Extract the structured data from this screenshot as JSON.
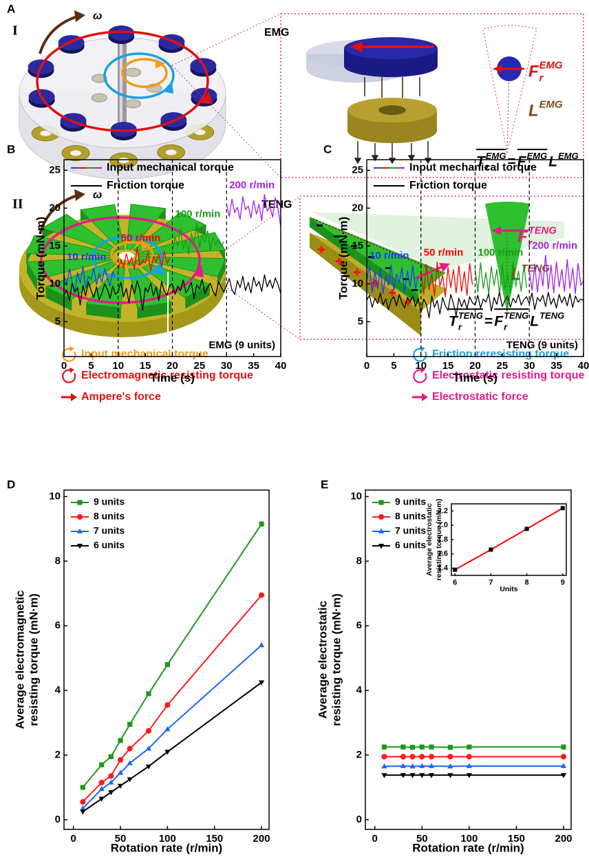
{
  "figure": {
    "panel": "A",
    "emg": {
      "row": "I",
      "label": "EMG",
      "omega": "ω",
      "force": {
        "symbol": "F",
        "sub": "r",
        "sup": "EMG"
      },
      "arm": {
        "symbol": "L",
        "sup": "EMG"
      },
      "torque": {
        "symbol": "T",
        "sub": "r",
        "sup": "EMG"
      },
      "equals": "="
    },
    "teng": {
      "row": "II",
      "label": "TENG",
      "omega": "ω",
      "force": {
        "symbol": "F",
        "sub": "r",
        "sup": "TENG"
      },
      "arm": {
        "symbol": "L",
        "sup": "TENG"
      },
      "torque": {
        "symbol": "T",
        "sub": "r",
        "sup": "TENG"
      },
      "equals": "="
    },
    "legend": [
      {
        "text": "Input mechanical torque",
        "color": "#f39a1a",
        "icon": "circle"
      },
      {
        "text": "Friction reresisting torque",
        "color": "#1aa0e0",
        "icon": "circle"
      },
      {
        "text": "Electromagnetic resisting torque",
        "color": "#e01010",
        "icon": "circle"
      },
      {
        "text": "Electrostatic resisting torque",
        "color": "#e6198a",
        "icon": "circle"
      },
      {
        "text": "Ampere's force",
        "color": "#e01010",
        "icon": "arrow"
      },
      {
        "text": "Electrostatic force",
        "color": "#e6198a",
        "icon": "arrow"
      }
    ]
  },
  "chart_data": [
    {
      "type": "line",
      "panel": "B",
      "xlabel": "Time (s)",
      "ylabel": "Torque (mN·m)",
      "note": "EMG (9 units)",
      "xlim": [
        0,
        40
      ],
      "xticks": [
        0,
        5,
        10,
        15,
        20,
        25,
        30,
        35,
        40
      ],
      "ylim": [
        0.4,
        26.4
      ],
      "yticks": [
        5,
        10,
        15,
        20,
        25
      ],
      "vlines": [
        10,
        20,
        30
      ],
      "legend": "upper left",
      "x": [
        0,
        0.5,
        1,
        1.5,
        2,
        2.5,
        3,
        3.5,
        4,
        4.5,
        5,
        5.5,
        6,
        6.5,
        7,
        7.5,
        8,
        8.5,
        9,
        9.5,
        10,
        10.5,
        11,
        11.5,
        12,
        12.5,
        13,
        13.5,
        14,
        14.5,
        15,
        15.5,
        16,
        16.5,
        17,
        17.5,
        18,
        18.5,
        19,
        19.5,
        20,
        20.5,
        21,
        21.5,
        22,
        22.5,
        23,
        23.5,
        24,
        24.5,
        25,
        25.5,
        26,
        26.5,
        27,
        27.5,
        28,
        28.5,
        29,
        29.5,
        30,
        30.5,
        31,
        31.5,
        32,
        32.5,
        33,
        33.5,
        34,
        34.5,
        35,
        35.5,
        36,
        36.5,
        37,
        37.5,
        38,
        38.5,
        39,
        39.5,
        40
      ],
      "series": [
        {
          "name": "Input mechanical torque",
          "segments": [
            {
              "label": "10 r/min",
              "color": "#1a3cff"
            },
            {
              "label": "50 r/min",
              "color": "#ff0000"
            },
            {
              "label": "100 r/min",
              "color": "#1a9a1a"
            },
            {
              "label": "200 r/min",
              "color": "#a020f0"
            }
          ],
          "values": [
            11.2,
            9.8,
            12.0,
            10.3,
            8.9,
            11.5,
            10.1,
            12.3,
            9.5,
            11.0,
            10.6,
            12.1,
            9.9,
            11.4,
            10.2,
            12.0,
            10.8,
            9.7,
            11.6,
            10.9,
            11.8,
            13.2,
            12.1,
            14.0,
            12.6,
            13.5,
            11.9,
            14.8,
            12.4,
            13.1,
            12.8,
            14.2,
            11.7,
            13.6,
            12.9,
            13.9,
            12.3,
            14.3,
            12.7,
            13.4,
            14.2,
            16.1,
            15.0,
            17.3,
            14.6,
            15.8,
            13.9,
            16.7,
            15.3,
            18.0,
            14.8,
            16.4,
            15.5,
            17.0,
            14.4,
            16.2,
            15.1,
            15.9,
            14.9,
            15.6,
            20.6,
            18.9,
            21.2,
            19.4,
            20.1,
            18.5,
            21.5,
            19.8,
            20.3,
            18.7,
            21.0,
            19.2,
            20.5,
            18.3,
            21.8,
            19.6,
            20.2,
            18.8,
            21.4,
            19.9,
            17.5
          ]
        },
        {
          "name": "Friction torque",
          "color": "#000000",
          "values": [
            8.5,
            9.2,
            7.8,
            10.1,
            8.9,
            9.5,
            7.2,
            9.8,
            8.4,
            10.3,
            9.1,
            8.2,
            9.6,
            7.9,
            8.8,
            10.0,
            9.3,
            8.1,
            9.7,
            8.6,
            9.0,
            10.2,
            8.3,
            9.4,
            7.5,
            9.9,
            8.7,
            10.4,
            9.2,
            6.5,
            9.5,
            8.9,
            10.1,
            8.4,
            9.6,
            7.8,
            10.3,
            9.0,
            8.5,
            9.8,
            10.0,
            8.6,
            9.7,
            9.1,
            10.5,
            8.8,
            9.4,
            10.2,
            8.0,
            9.9,
            9.3,
            10.6,
            8.7,
            9.5,
            10.1,
            9.0,
            8.4,
            10.3,
            9.6,
            8.9,
            9.8,
            10.7,
            9.2,
            8.6,
            10.4,
            9.5,
            11.0,
            9.1,
            10.2,
            8.8,
            10.9,
            9.7,
            10.3,
            9.0,
            11.2,
            9.6,
            10.5,
            9.4,
            10.8,
            9.9,
            8.7
          ]
        }
      ]
    },
    {
      "type": "line",
      "panel": "C",
      "xlabel": "Time (s)",
      "ylabel": "Torque (mN·m)",
      "note": "TENG (9 units)",
      "xlim": [
        0,
        40
      ],
      "xticks": [
        0,
        5,
        10,
        15,
        20,
        25,
        30,
        35,
        40
      ],
      "ylim": [
        0.4,
        26.4
      ],
      "yticks": [
        5,
        10,
        15,
        20,
        25
      ],
      "vlines": [
        10,
        20,
        30
      ],
      "legend": "upper left",
      "x": [
        0,
        0.5,
        1,
        1.5,
        2,
        2.5,
        3,
        3.5,
        4,
        4.5,
        5,
        5.5,
        6,
        6.5,
        7,
        7.5,
        8,
        8.5,
        9,
        9.5,
        10,
        10.5,
        11,
        11.5,
        12,
        12.5,
        13,
        13.5,
        14,
        14.5,
        15,
        15.5,
        16,
        16.5,
        17,
        17.5,
        18,
        18.5,
        19,
        19.5,
        20,
        20.5,
        21,
        21.5,
        22,
        22.5,
        23,
        23.5,
        24,
        24.5,
        25,
        25.5,
        26,
        26.5,
        27,
        27.5,
        28,
        28.5,
        29,
        29.5,
        30,
        30.5,
        31,
        31.5,
        32,
        32.5,
        33,
        33.5,
        34,
        34.5,
        35,
        35.5,
        36,
        36.5,
        37,
        37.5,
        38,
        38.5,
        39,
        39.5,
        40
      ],
      "series": [
        {
          "name": "Input mechanical torque",
          "segments": [
            {
              "label": "10 r/min",
              "color": "#1a3cff"
            },
            {
              "label": "50 r/min",
              "color": "#ff0000"
            },
            {
              "label": "100 r/min",
              "color": "#1a9a1a"
            },
            {
              "label": "200 r/min",
              "color": "#a020f0"
            }
          ],
          "values": [
            10.5,
            12.3,
            8.9,
            11.6,
            9.4,
            12.0,
            8.7,
            11.1,
            9.8,
            12.5,
            9.1,
            11.3,
            10.2,
            12.1,
            8.8,
            11.7,
            9.6,
            12.4,
            9.3,
            11.0,
            11.8,
            8.6,
            12.6,
            9.2,
            11.4,
            8.4,
            12.9,
            9.7,
            11.1,
            8.3,
            12.2,
            9.5,
            11.9,
            8.8,
            12.4,
            9.0,
            11.6,
            8.5,
            12.7,
            9.9,
            12.0,
            8.9,
            12.8,
            9.4,
            11.5,
            8.7,
            12.3,
            9.8,
            11.9,
            8.6,
            12.6,
            9.3,
            11.2,
            8.8,
            12.9,
            9.6,
            11.7,
            9.0,
            12.4,
            9.5,
            11.8,
            9.1,
            12.6,
            8.9,
            12.2,
            9.7,
            13.8,
            9.3,
            12.5,
            8.8,
            12.9,
            9.6,
            11.9,
            9.0,
            13.2,
            9.4,
            12.1,
            8.7,
            12.7,
            9.8,
            10.4
          ]
        },
        {
          "name": "Friction torque",
          "color": "#000000",
          "values": [
            7.8,
            8.5,
            6.9,
            8.1,
            7.4,
            8.8,
            7.2,
            8.0,
            6.6,
            7.9,
            8.3,
            7.1,
            8.6,
            7.5,
            6.8,
            8.2,
            7.7,
            8.4,
            7.0,
            8.1,
            6.2,
            8.0,
            7.3,
            5.5,
            8.4,
            6.9,
            7.8,
            6.0,
            8.2,
            7.1,
            6.5,
            8.6,
            7.4,
            5.8,
            8.1,
            7.0,
            7.9,
            6.7,
            8.3,
            7.5,
            7.2,
            8.5,
            6.8,
            8.0,
            7.6,
            8.7,
            6.4,
            8.2,
            7.3,
            8.9,
            7.0,
            7.8,
            8.4,
            6.9,
            8.1,
            7.5,
            8.6,
            7.2,
            7.9,
            8.3,
            7.4,
            8.8,
            6.6,
            8.2,
            7.7,
            8.5,
            7.0,
            8.9,
            7.3,
            8.1,
            6.8,
            8.6,
            7.5,
            8.3,
            7.1,
            8.7,
            6.9,
            8.4,
            7.6,
            8.0,
            7.8
          ]
        }
      ]
    },
    {
      "type": "line",
      "panel": "D",
      "xlabel": "Rotation rate (r/min)",
      "ylabel": [
        "Average electromagnetic",
        "resisting torque (mN·m)"
      ],
      "xlim": [
        -10,
        208
      ],
      "xticks": [
        0,
        50,
        100,
        150,
        200
      ],
      "ylim": [
        -0.3,
        10.2
      ],
      "yticks": [
        0,
        2,
        4,
        6,
        8,
        10
      ],
      "legend": "upper left",
      "x": [
        10,
        30,
        40,
        50,
        60,
        80,
        100,
        200
      ],
      "series": [
        {
          "name": "9 units",
          "color": "#1a9a1a",
          "marker": "square",
          "values": [
            1.0,
            1.7,
            1.95,
            2.45,
            2.95,
            3.9,
            4.8,
            9.15
          ]
        },
        {
          "name": "8 units",
          "color": "#ff1a1a",
          "marker": "circle",
          "values": [
            0.55,
            1.15,
            1.35,
            1.85,
            2.2,
            2.75,
            3.55,
            6.95
          ]
        },
        {
          "name": "7 units",
          "color": "#1a66ff",
          "marker": "triangle-up",
          "values": [
            0.35,
            0.95,
            1.15,
            1.45,
            1.75,
            2.2,
            2.8,
            5.4
          ]
        },
        {
          "name": "6 units",
          "color": "#000000",
          "marker": "triangle-down",
          "values": [
            0.25,
            0.65,
            0.85,
            1.05,
            1.25,
            1.65,
            2.1,
            4.25
          ]
        }
      ]
    },
    {
      "type": "line",
      "panel": "E",
      "xlabel": "Rotation rate (r/min)",
      "ylabel": [
        "Average electrostatic",
        "resisting torque (mN·m)"
      ],
      "xlim": [
        -10,
        208
      ],
      "xticks": [
        0,
        50,
        100,
        150,
        200
      ],
      "ylim": [
        -0.3,
        10.2
      ],
      "yticks": [
        0,
        2,
        4,
        6,
        8,
        10
      ],
      "legend": "upper left",
      "x": [
        10,
        30,
        40,
        50,
        60,
        80,
        100,
        200
      ],
      "series": [
        {
          "name": "9 units",
          "color": "#1a9a1a",
          "marker": "square",
          "values": [
            2.25,
            2.25,
            2.24,
            2.25,
            2.25,
            2.24,
            2.25,
            2.25
          ]
        },
        {
          "name": "8 units",
          "color": "#ff1a1a",
          "marker": "circle",
          "values": [
            1.95,
            1.95,
            1.95,
            1.95,
            1.95,
            1.95,
            1.95,
            1.95
          ]
        },
        {
          "name": "7 units",
          "color": "#1a66ff",
          "marker": "triangle-up",
          "values": [
            1.65,
            1.66,
            1.65,
            1.66,
            1.66,
            1.65,
            1.66,
            1.66
          ]
        },
        {
          "name": "6 units",
          "color": "#000000",
          "marker": "triangle-down",
          "values": [
            1.38,
            1.38,
            1.38,
            1.38,
            1.38,
            1.38,
            1.38,
            1.38
          ]
        }
      ],
      "inset": {
        "type": "line",
        "xlabel": "Units",
        "ylabel": [
          "Average electrostatic",
          "resisting torque (mN·m)"
        ],
        "xlim": [
          5.9,
          9.1
        ],
        "xticks": [
          6,
          7,
          8,
          9
        ],
        "ylim": [
          1.3,
          2.3
        ],
        "yticks": [
          1.4,
          1.6,
          1.8,
          {
            "value": 2,
            "label": "2.0"
          },
          2.2
        ],
        "x": [
          6,
          7,
          8,
          9
        ],
        "series": [
          {
            "color": "#ff0000",
            "marker": "square",
            "marker_color": "#000000",
            "values": [
              1.38,
              1.66,
              1.95,
              2.24
            ]
          }
        ]
      }
    }
  ]
}
